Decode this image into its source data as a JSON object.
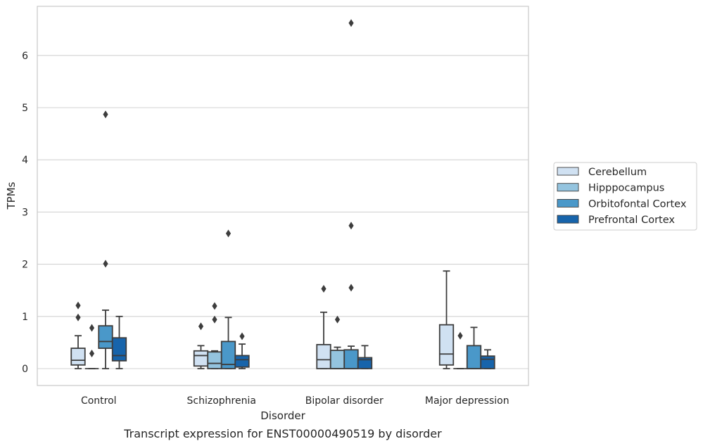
{
  "chart_data": {
    "type": "box",
    "title": "Transcript expression for ENST00000490519 by disorder",
    "xlabel": "Disorder",
    "ylabel": "TPMs",
    "ylim": [
      -0.32,
      6.95
    ],
    "yticks": [
      0,
      1,
      2,
      3,
      4,
      5,
      6
    ],
    "grid": "horizontal",
    "legend_position": "right",
    "categories": [
      "Control",
      "Schizophrenia",
      "Bipolar disorder",
      "Major depression"
    ],
    "series": [
      {
        "name": "Cerebellum",
        "color": "#d0e1f2",
        "boxes": [
          {
            "whisker_low": 0.0,
            "q1": 0.07,
            "median": 0.16,
            "q3": 0.39,
            "whisker_high": 0.63,
            "outliers": [
              0.98,
              1.21
            ]
          },
          {
            "whisker_low": 0.0,
            "q1": 0.05,
            "median": 0.25,
            "q3": 0.34,
            "whisker_high": 0.44,
            "outliers": [
              0.81
            ]
          },
          {
            "whisker_low": 0.0,
            "q1": 0.0,
            "median": 0.17,
            "q3": 0.46,
            "whisker_high": 1.08,
            "outliers": [
              1.53
            ]
          },
          {
            "whisker_low": 0.0,
            "q1": 0.07,
            "median": 0.28,
            "q3": 0.84,
            "whisker_high": 1.87,
            "outliers": []
          }
        ]
      },
      {
        "name": "Hipppocampus",
        "color": "#94c4df",
        "boxes": [
          {
            "whisker_low": 0.0,
            "q1": 0.0,
            "median": 0.0,
            "q3": 0.0,
            "whisker_high": 0.0,
            "outliers": [
              0.29,
              0.78
            ]
          },
          {
            "whisker_low": 0.0,
            "q1": 0.0,
            "median": 0.1,
            "q3": 0.32,
            "whisker_high": 0.34,
            "outliers": [
              0.94,
              1.2
            ]
          },
          {
            "whisker_low": 0.0,
            "q1": 0.0,
            "median": 0.0,
            "q3": 0.35,
            "whisker_high": 0.41,
            "outliers": [
              0.94
            ]
          },
          {
            "whisker_low": 0.0,
            "q1": 0.0,
            "median": 0.0,
            "q3": 0.0,
            "whisker_high": 0.0,
            "outliers": [
              0.63
            ]
          }
        ]
      },
      {
        "name": "Orbitofontal Cortex",
        "color": "#4a98c9",
        "boxes": [
          {
            "whisker_low": 0.0,
            "q1": 0.39,
            "median": 0.52,
            "q3": 0.82,
            "whisker_high": 1.12,
            "outliers": [
              2.01,
              4.87
            ]
          },
          {
            "whisker_low": 0.0,
            "q1": 0.0,
            "median": 0.08,
            "q3": 0.52,
            "whisker_high": 0.98,
            "outliers": [
              2.59
            ]
          },
          {
            "whisker_low": 0.0,
            "q1": 0.0,
            "median": 0.0,
            "q3": 0.36,
            "whisker_high": 0.43,
            "outliers": [
              1.55,
              2.74,
              6.62
            ]
          },
          {
            "whisker_low": 0.0,
            "q1": 0.0,
            "median": 0.0,
            "q3": 0.44,
            "whisker_high": 0.79,
            "outliers": []
          }
        ]
      },
      {
        "name": "Prefrontal Cortex",
        "color": "#1764ab",
        "boxes": [
          {
            "whisker_low": 0.0,
            "q1": 0.15,
            "median": 0.25,
            "q3": 0.59,
            "whisker_high": 1.0,
            "outliers": []
          },
          {
            "whisker_low": 0.0,
            "q1": 0.03,
            "median": 0.17,
            "q3": 0.25,
            "whisker_high": 0.47,
            "outliers": [
              0.62
            ]
          },
          {
            "whisker_low": 0.0,
            "q1": 0.0,
            "median": 0.17,
            "q3": 0.21,
            "whisker_high": 0.44,
            "outliers": []
          },
          {
            "whisker_low": 0.0,
            "q1": 0.0,
            "median": 0.18,
            "q3": 0.24,
            "whisker_high": 0.36,
            "outliers": []
          }
        ]
      }
    ]
  }
}
